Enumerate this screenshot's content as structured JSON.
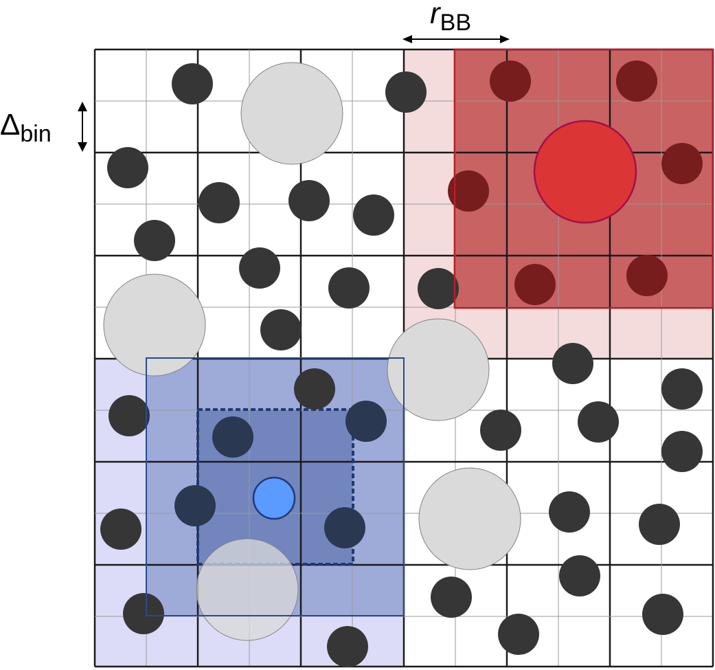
{
  "labels": {
    "r_main": "r",
    "r_sub": "BB",
    "delta_main": "Δ",
    "delta_sub": "bin"
  },
  "colors": {
    "black_particle": "#363636",
    "gray_particle": "#dadada",
    "red_region_light": "#f4dcdc",
    "red_box": "#c96262",
    "red_particle": "#dc3535",
    "red_border": "#b81e2a",
    "blue_region_light": "#dcdcf8",
    "blue_box": "#9eaad8",
    "blue_inner": "#7286bd",
    "blue_particle": "#5b9aff",
    "blue_border": "#1d3a7a",
    "grid_major": "#1a1a1a",
    "grid_minor": "#9a9a9a"
  }
}
